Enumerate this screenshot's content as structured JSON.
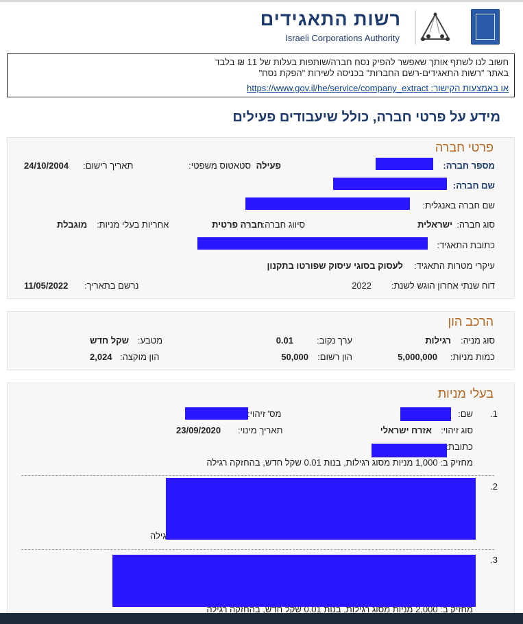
{
  "header": {
    "title_he": "רשות התאגידים",
    "title_en": "Israeli Corporations Authority"
  },
  "notice": {
    "line1": "חשוב לנו לשתף אותך שאפשר להפיק נסח חברה/שותפות בעלות של 11 ₪ בלבד",
    "line2": "באתר \"רשות התאגידים-רשם החברות\" בכניסה לשירות \"הפקת נסח\"",
    "link": "או באמצעות הקישור: https://www.gov.il/he/service/company_extract"
  },
  "page_title": "מידע על פרטי חברה, כולל שיעבודים פעילים",
  "company": {
    "title": "פרטי חברה",
    "company_number_label": "מספר חברה:",
    "legal_status_label": "סטאטוס משפטי:",
    "legal_status": "פעילה",
    "registration_date_label": "תאריך רישום:",
    "registration_date": "24/10/2004",
    "name_label": "שם חברה:",
    "english_name_label": "שם חברה באנגלית:",
    "type_label": "סוג חברה:",
    "type": "ישראלית",
    "classification_label": "סיווג חברה:",
    "classification": "חברה פרטית",
    "liability_label": "אחריות בעלי מניות:",
    "liability": "מוגבלת",
    "address_label": "כתובת התאגיד:",
    "purposes_label": "עיקרי מטרות התאגיד:",
    "purposes": "לעסוק בסוגי עיסוק שפורטו בתקנון",
    "report_label": "דוח שנתי אחרון הוגש לשנת:",
    "report_year": "2022",
    "report_date_label": "נרשם בתאריך:",
    "report_date": "11/05/2022"
  },
  "capital": {
    "title": "הרכב הון",
    "share_type_label": "סוג מניה:",
    "share_type": "רגילות",
    "par_label": "ערך נקוב:",
    "par": "0.01",
    "currency_label": "מטבע:",
    "currency": "שקל חדש",
    "shares_label": "כמות מניות:",
    "shares": "5,000,000",
    "registered_label": "הון רשום:",
    "registered": "50,000",
    "issued_label": "הון מוקצה:",
    "issued": "2,024"
  },
  "shareholders": {
    "title": "בעלי מניות",
    "items": [
      {
        "num": "1.",
        "name_label": "שם:",
        "id_label": "מס' זיהוי:",
        "id_type_label": "סוג זיהוי:",
        "id_type": "אזרח ישראלי",
        "appoint_label": "תאריך מינוי:",
        "appoint_date": "23/09/2020",
        "address_label": "כתובת:",
        "holding": "מחזיק ב: 1,000 מניות מסוג רגילות, בנות 0.01 שקל חדש, בהחזקה רגילה"
      },
      {
        "num": "2.",
        "holding_partial": "גילה"
      },
      {
        "num": "3.",
        "holding": "מחזיק ב: 2,000 מניות מסוג רגילות, בנות 0.01 שקל חדש, בהחזקה רגילה"
      }
    ]
  }
}
